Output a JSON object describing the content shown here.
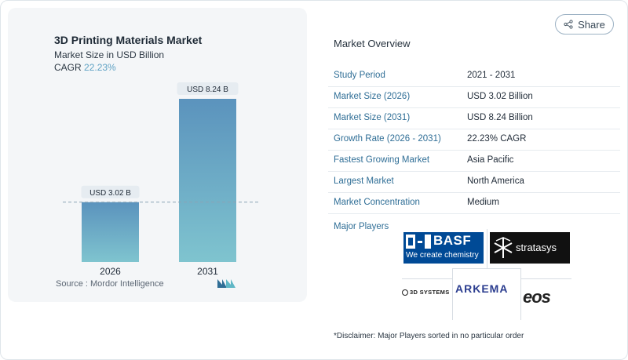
{
  "chart": {
    "title": "3D Printing Materials Market",
    "subtitle": "Market Size in USD Billion",
    "cagr_label": "CAGR",
    "cagr_value": "22.23%",
    "source": "Source :  Mordor Intelligence"
  },
  "chart_data": {
    "type": "bar",
    "categories": [
      "2026",
      "2031"
    ],
    "values": [
      3.02,
      8.24
    ],
    "data_labels": [
      "USD 3.02 B",
      "USD 8.24 B"
    ],
    "title": "3D Printing Materials Market",
    "ylabel": "",
    "xlabel": "",
    "ylim": [
      0,
      8.24
    ],
    "grid": false,
    "colors": {
      "bar_top": "#5b93bd",
      "bar_bottom": "#7fc4cf",
      "label_bg": "#e6ecf1",
      "dash": "#8aa3b6"
    }
  },
  "share": {
    "label": "Share"
  },
  "overview": {
    "title": "Market Overview",
    "rows": [
      {
        "key": "Study Period",
        "value": "2021 - 2031"
      },
      {
        "key": "Market Size (2026)",
        "value": "USD 3.02 Billion"
      },
      {
        "key": "Market Size (2031)",
        "value": "USD 8.24 Billion"
      },
      {
        "key": "Growth Rate (2026 - 2031)",
        "value": "22.23% CAGR"
      },
      {
        "key": "Fastest Growing Market",
        "value": "Asia Pacific"
      },
      {
        "key": "Largest Market",
        "value": "North America"
      },
      {
        "key": "Market Concentration",
        "value": "Medium"
      }
    ],
    "players_label": "Major Players"
  },
  "players": {
    "basf_name": "BASF",
    "basf_tagline": "We create chemistry",
    "stratasys": "stratasys",
    "systems3d": "3D SYSTEMS",
    "arkema": "ARKEMA",
    "eos": "eos"
  },
  "disclaimer": "*Disclaimer: Major Players sorted in no particular order"
}
